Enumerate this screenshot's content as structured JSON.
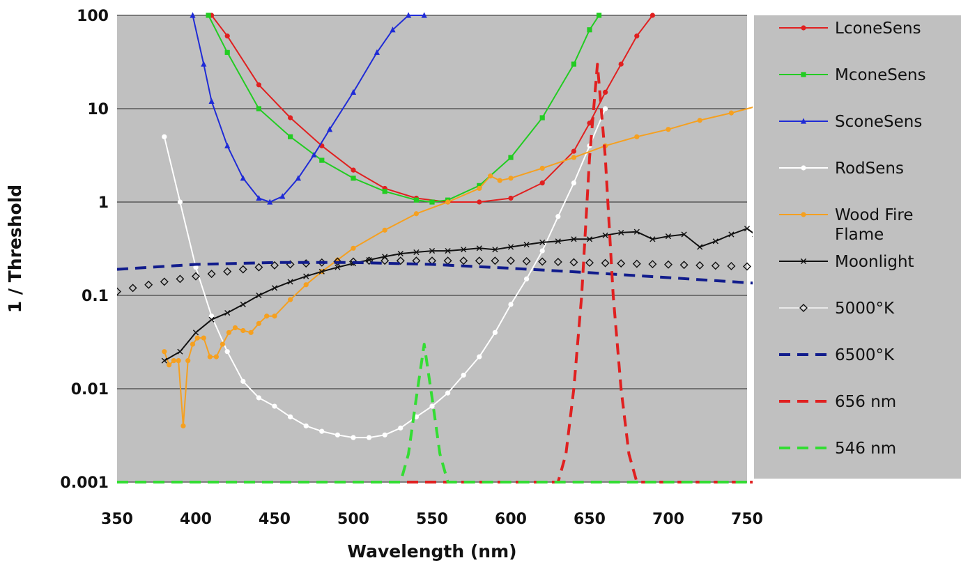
{
  "chart_data": {
    "type": "line",
    "xlabel": "Wavelength (nm)",
    "ylabel": "1 / Threshold",
    "xlim": [
      350,
      750
    ],
    "ylim": [
      0.001,
      100
    ],
    "yscale": "log",
    "x_ticks": [
      "350",
      "400",
      "450",
      "500",
      "550",
      "600",
      "650",
      "700",
      "750"
    ],
    "y_ticks": [
      "0.001",
      "0.01",
      "0.1",
      "1",
      "10",
      "100"
    ],
    "grid": "horizontal",
    "legend_position": "right",
    "series": [
      {
        "name": "LconeSens",
        "color": "#e02020",
        "marker": "dot",
        "dash": "solid",
        "x": [
          410,
          420,
          440,
          460,
          480,
          500,
          520,
          540,
          560,
          580,
          600,
          620,
          640,
          650,
          660,
          670,
          680,
          690
        ],
        "y": [
          100,
          60,
          18,
          8,
          4,
          2.2,
          1.4,
          1.1,
          1,
          1,
          1.1,
          1.6,
          3.5,
          7,
          15,
          30,
          60,
          100
        ]
      },
      {
        "name": "MconeSens",
        "color": "#22cc22",
        "marker": "square",
        "dash": "solid",
        "x": [
          408,
          420,
          440,
          460,
          480,
          500,
          520,
          540,
          550,
          560,
          580,
          600,
          620,
          640,
          650,
          656
        ],
        "y": [
          100,
          40,
          10,
          5,
          2.8,
          1.8,
          1.3,
          1.05,
          1,
          1.05,
          1.5,
          3,
          8,
          30,
          70,
          100
        ]
      },
      {
        "name": "SconeSens",
        "color": "#1f2bd6",
        "marker": "triangle",
        "dash": "solid",
        "x": [
          398,
          405,
          410,
          420,
          430,
          440,
          447,
          455,
          465,
          475,
          485,
          500,
          515,
          525,
          535,
          545
        ],
        "y": [
          100,
          30,
          12,
          4,
          1.8,
          1.1,
          1,
          1.15,
          1.8,
          3.2,
          6,
          15,
          40,
          70,
          100,
          100
        ]
      },
      {
        "name": "RodSens",
        "color": "#ffffff",
        "marker": "dot",
        "dash": "solid",
        "x": [
          380,
          390,
          400,
          410,
          420,
          430,
          440,
          450,
          460,
          470,
          480,
          490,
          500,
          510,
          520,
          530,
          540,
          550,
          560,
          570,
          580,
          590,
          600,
          610,
          620,
          630,
          640,
          650,
          660
        ],
        "y": [
          5,
          1,
          0.2,
          0.06,
          0.025,
          0.012,
          0.008,
          0.0065,
          0.005,
          0.004,
          0.0035,
          0.0032,
          0.003,
          0.003,
          0.0032,
          0.0038,
          0.005,
          0.0065,
          0.009,
          0.014,
          0.022,
          0.04,
          0.08,
          0.15,
          0.3,
          0.7,
          1.6,
          4,
          10
        ]
      },
      {
        "name": "Wood Fire Flame",
        "color": "#f5a020",
        "marker": "dot",
        "dash": "solid",
        "x": [
          380,
          383,
          386,
          389,
          392,
          395,
          398,
          401,
          405,
          409,
          413,
          417,
          421,
          425,
          430,
          435,
          440,
          445,
          450,
          460,
          470,
          480,
          490,
          500,
          520,
          540,
          560,
          580,
          587,
          593,
          600,
          620,
          640,
          660,
          680,
          700,
          720,
          740,
          755
        ],
        "y": [
          0.025,
          0.018,
          0.02,
          0.02,
          0.004,
          0.02,
          0.03,
          0.035,
          0.035,
          0.022,
          0.022,
          0.03,
          0.04,
          0.045,
          0.042,
          0.04,
          0.05,
          0.06,
          0.06,
          0.09,
          0.13,
          0.18,
          0.24,
          0.32,
          0.5,
          0.75,
          1,
          1.4,
          1.9,
          1.7,
          1.8,
          2.3,
          3,
          4,
          5,
          6,
          7.5,
          9,
          10.5
        ]
      },
      {
        "name": "Moonlight",
        "color": "#111111",
        "marker": "x",
        "dash": "solid",
        "x": [
          380,
          390,
          400,
          410,
          420,
          430,
          440,
          450,
          460,
          470,
          480,
          490,
          500,
          510,
          520,
          530,
          540,
          550,
          560,
          570,
          580,
          590,
          600,
          610,
          620,
          630,
          640,
          650,
          660,
          670,
          680,
          690,
          700,
          710,
          720,
          730,
          740,
          750,
          755
        ],
        "y": [
          0.02,
          0.025,
          0.04,
          0.055,
          0.065,
          0.08,
          0.1,
          0.12,
          0.14,
          0.16,
          0.18,
          0.2,
          0.22,
          0.24,
          0.26,
          0.28,
          0.29,
          0.3,
          0.3,
          0.31,
          0.32,
          0.31,
          0.33,
          0.35,
          0.37,
          0.38,
          0.4,
          0.4,
          0.44,
          0.47,
          0.48,
          0.4,
          0.43,
          0.45,
          0.33,
          0.38,
          0.45,
          0.52,
          0.45
        ]
      },
      {
        "name": "5000°K",
        "color": "#111111",
        "marker": "diamond",
        "dash": "none",
        "x": [
          350,
          360,
          370,
          380,
          390,
          400,
          410,
          420,
          430,
          440,
          450,
          460,
          470,
          480,
          490,
          500,
          510,
          520,
          530,
          540,
          550,
          560,
          570,
          580,
          590,
          600,
          610,
          620,
          630,
          640,
          650,
          660,
          670,
          680,
          690,
          700,
          710,
          720,
          730,
          740,
          750
        ],
        "y": [
          0.11,
          0.12,
          0.13,
          0.14,
          0.15,
          0.16,
          0.17,
          0.18,
          0.19,
          0.2,
          0.21,
          0.215,
          0.22,
          0.225,
          0.23,
          0.23,
          0.235,
          0.235,
          0.235,
          0.235,
          0.235,
          0.235,
          0.235,
          0.235,
          0.235,
          0.235,
          0.232,
          0.23,
          0.228,
          0.226,
          0.224,
          0.222,
          0.22,
          0.218,
          0.216,
          0.214,
          0.212,
          0.21,
          0.208,
          0.206,
          0.204
        ]
      },
      {
        "name": "6500°K",
        "color": "#111c8c",
        "marker": "none",
        "dash": "long",
        "x": [
          350,
          400,
          450,
          500,
          550,
          600,
          650,
          700,
          755
        ],
        "y": [
          0.19,
          0.215,
          0.225,
          0.225,
          0.215,
          0.195,
          0.175,
          0.155,
          0.135
        ]
      },
      {
        "name": "656 nm",
        "color": "#e02020",
        "marker": "none",
        "dash": "long",
        "x": [
          350,
          620,
          630,
          635,
          640,
          645,
          650,
          655,
          660,
          665,
          670,
          675,
          680,
          690,
          755
        ],
        "y": [
          0.001,
          0.001,
          0.001,
          0.002,
          0.01,
          0.1,
          3,
          30,
          3,
          0.1,
          0.01,
          0.002,
          0.001,
          0.001,
          0.001
        ]
      },
      {
        "name": "546 nm",
        "color": "#33dd33",
        "marker": "none",
        "dash": "long",
        "x": [
          350,
          520,
          530,
          535,
          540,
          545,
          550,
          555,
          560,
          565,
          755
        ],
        "y": [
          0.001,
          0.001,
          0.001,
          0.002,
          0.008,
          0.03,
          0.008,
          0.002,
          0.001,
          0.001,
          0.001
        ]
      }
    ]
  }
}
